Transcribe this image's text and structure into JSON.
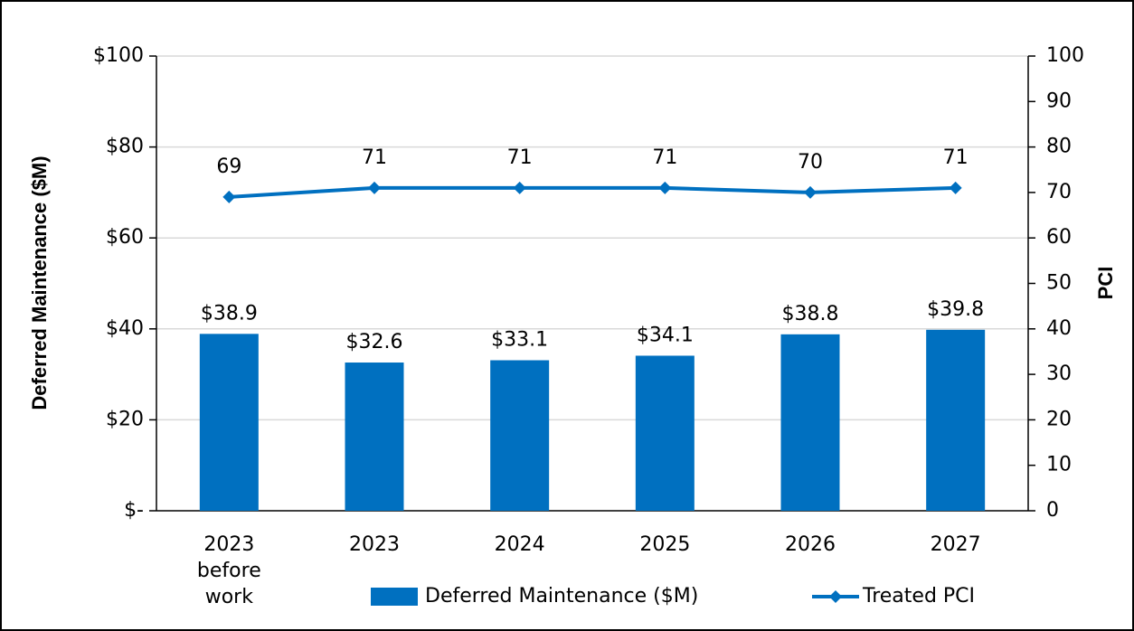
{
  "chart_data": {
    "type": "combo",
    "y_label": "Deferred Maintenance ($M)",
    "y2_label": "PCI",
    "categories": [
      "2023 before work",
      "2023",
      "2024",
      "2025",
      "2026",
      "2027"
    ],
    "series": [
      {
        "name": "Deferred Maintenance ($M)",
        "type": "bar",
        "color": "#0070c0",
        "values": [
          38.9,
          32.6,
          33.1,
          34.1,
          38.8,
          39.8
        ],
        "value_labels": [
          "$38.9",
          "$32.6",
          "$33.1",
          "$34.1",
          "$38.8",
          "$39.8"
        ]
      },
      {
        "name": "Treated PCI",
        "type": "line",
        "axis": "y2",
        "color": "#0070c0",
        "values": [
          69,
          71,
          71,
          71,
          70,
          71
        ]
      }
    ],
    "ylim": [
      0,
      100
    ],
    "yticks": [
      {
        "value": 0,
        "label": "$-"
      },
      {
        "value": 20,
        "label": "$20"
      },
      {
        "value": 40,
        "label": "$40"
      },
      {
        "value": 60,
        "label": "$60"
      },
      {
        "value": 80,
        "label": "$80"
      },
      {
        "value": 100,
        "label": "$100"
      }
    ],
    "y2lim": [
      0,
      100
    ],
    "y2ticks": [
      0,
      10,
      20,
      30,
      40,
      50,
      60,
      70,
      80,
      90,
      100
    ],
    "grid": true,
    "legend": "bottom"
  }
}
